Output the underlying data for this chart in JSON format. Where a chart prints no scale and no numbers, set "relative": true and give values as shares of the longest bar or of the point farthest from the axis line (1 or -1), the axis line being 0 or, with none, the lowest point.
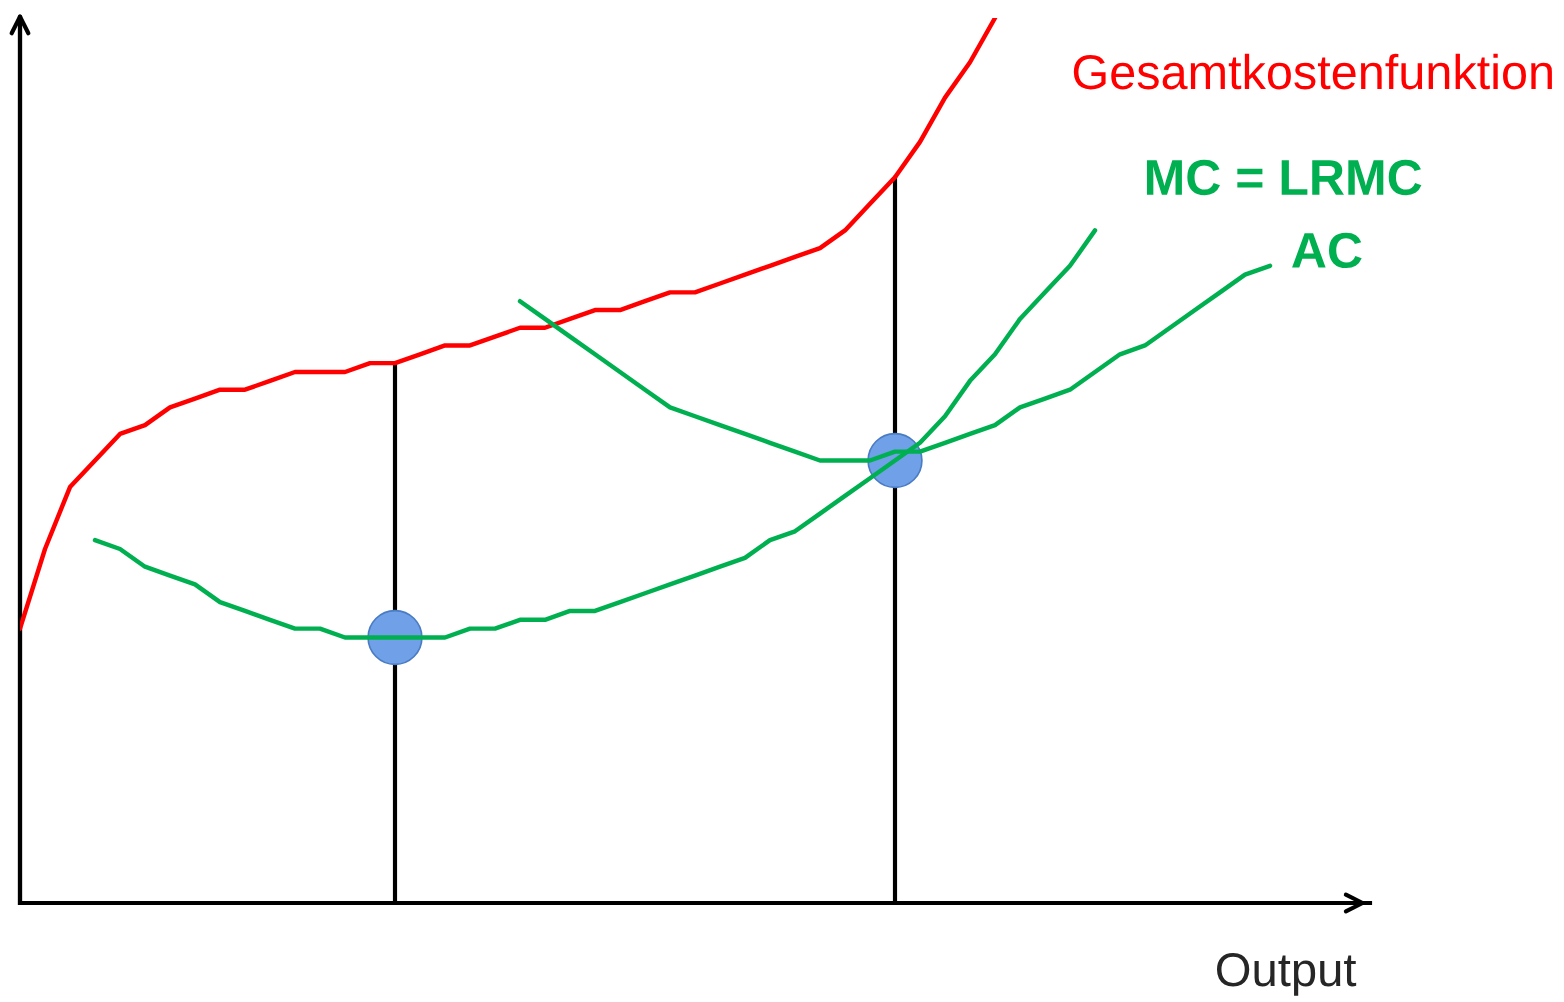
{
  "chart_data": {
    "type": "line",
    "relative": true,
    "xlabel": "Output",
    "categories": [
      null,
      null,
      null,
      null,
      null,
      null,
      null,
      null,
      null,
      null,
      null,
      null,
      null,
      null,
      null,
      null,
      null,
      null,
      null,
      null,
      null,
      null,
      null,
      null,
      null,
      null,
      null,
      null,
      null,
      null,
      null,
      null,
      null,
      null,
      null,
      null,
      null,
      null,
      null,
      null,
      null,
      null,
      null,
      null,
      null,
      null,
      null,
      null,
      null,
      null,
      null,
      null,
      null,
      null,
      null
    ],
    "series": [
      {
        "name": "Gesamtkostenfunktion",
        "color": "#ff0000",
        "values": [
          0.31,
          0.4,
          0.47,
          0.5,
          0.53,
          0.54,
          0.56,
          0.57,
          0.58,
          0.58,
          0.59,
          0.6,
          0.6,
          0.6,
          0.61,
          0.61,
          0.62,
          0.63,
          0.63,
          0.64,
          0.65,
          0.65,
          0.66,
          0.67,
          0.67,
          0.68,
          0.69,
          0.69,
          0.7,
          0.71,
          0.72,
          0.73,
          0.74,
          0.76,
          0.79,
          0.82,
          0.86,
          0.91,
          0.95,
          1.0,
          null,
          null,
          null,
          null,
          null,
          null,
          null,
          null,
          null,
          null,
          null,
          null,
          null,
          null,
          null
        ]
      },
      {
        "name": "MC = LRMC",
        "color": "#00b050",
        "values": [
          null,
          null,
          null,
          0.41,
          0.4,
          0.38,
          0.37,
          0.36,
          0.34,
          0.33,
          0.32,
          0.31,
          0.31,
          0.3,
          0.3,
          0.3,
          0.3,
          0.3,
          0.31,
          0.31,
          0.32,
          0.32,
          0.33,
          0.33,
          0.34,
          0.35,
          0.36,
          0.37,
          0.38,
          0.39,
          0.41,
          0.42,
          0.44,
          0.46,
          0.48,
          0.5,
          0.52,
          0.55,
          0.59,
          0.62,
          0.66,
          0.69,
          0.72,
          0.76,
          null,
          null,
          null,
          null,
          null,
          null,
          null,
          null,
          null,
          null,
          null
        ]
      },
      {
        "name": "AC",
        "color": "#00b050",
        "values": [
          null,
          null,
          null,
          null,
          null,
          null,
          null,
          null,
          null,
          null,
          null,
          null,
          null,
          null,
          null,
          null,
          null,
          null,
          null,
          null,
          0.68,
          0.66,
          0.64,
          0.62,
          0.6,
          0.58,
          0.56,
          0.55,
          0.54,
          0.53,
          0.52,
          0.51,
          0.5,
          0.5,
          0.5,
          0.51,
          0.51,
          0.52,
          0.53,
          0.54,
          0.56,
          0.57,
          0.58,
          0.6,
          0.62,
          0.63,
          0.65,
          0.67,
          0.69,
          0.71,
          0.72,
          null,
          null,
          null,
          null
        ]
      }
    ]
  }
}
